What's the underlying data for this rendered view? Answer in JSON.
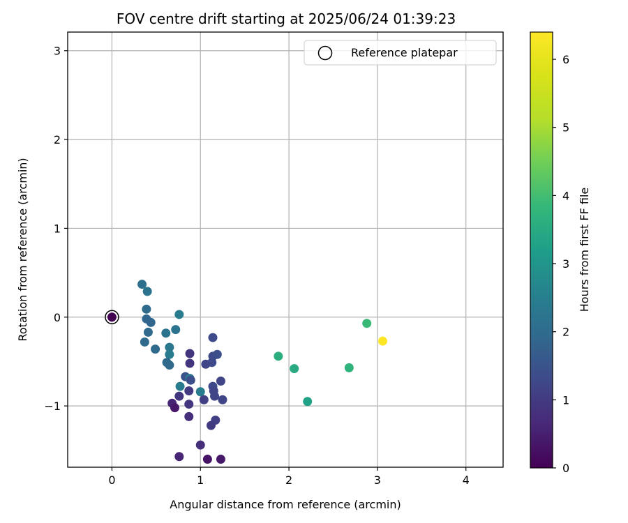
{
  "chart_data": {
    "type": "scatter",
    "title": "FOV centre drift starting at 2025/06/24 01:39:23",
    "xlabel": "Angular distance from reference (arcmin)",
    "ylabel": "Rotation from reference (arcmin)",
    "xlim": [
      -0.5,
      4.42
    ],
    "ylim": [
      -1.69,
      3.21
    ],
    "xticks": [
      0,
      1,
      2,
      3,
      4
    ],
    "yticks": [
      -1,
      0,
      1,
      2,
      3
    ],
    "grid": true,
    "legend": {
      "placement": "top-right",
      "entries": [
        "Reference platepar"
      ]
    },
    "colorbar": {
      "label": "Hours from first FF file",
      "colormap": "viridis",
      "range": [
        0,
        6.4
      ],
      "ticks": [
        0,
        1,
        2,
        3,
        4,
        5,
        6
      ]
    },
    "reference_point": {
      "x": 0,
      "y": 0
    },
    "points": [
      {
        "x": 0.0,
        "y": 0.0,
        "c": 0.0
      },
      {
        "x": 0.34,
        "y": 0.37,
        "c": 2.1
      },
      {
        "x": 0.4,
        "y": 0.29,
        "c": 2.2
      },
      {
        "x": 0.39,
        "y": 0.09,
        "c": 2.0
      },
      {
        "x": 0.39,
        "y": -0.02,
        "c": 1.9
      },
      {
        "x": 0.44,
        "y": -0.06,
        "c": 1.9
      },
      {
        "x": 0.41,
        "y": -0.17,
        "c": 2.0
      },
      {
        "x": 0.37,
        "y": -0.28,
        "c": 2.0
      },
      {
        "x": 0.49,
        "y": -0.36,
        "c": 2.0
      },
      {
        "x": 0.61,
        "y": -0.18,
        "c": 2.2
      },
      {
        "x": 0.72,
        "y": -0.14,
        "c": 2.2
      },
      {
        "x": 0.76,
        "y": 0.03,
        "c": 2.4
      },
      {
        "x": 0.65,
        "y": -0.34,
        "c": 2.3
      },
      {
        "x": 0.65,
        "y": -0.42,
        "c": 2.4
      },
      {
        "x": 0.62,
        "y": -0.51,
        "c": 2.0
      },
      {
        "x": 0.65,
        "y": -0.54,
        "c": 2.0
      },
      {
        "x": 0.88,
        "y": -0.41,
        "c": 0.9
      },
      {
        "x": 0.88,
        "y": -0.52,
        "c": 0.9
      },
      {
        "x": 0.83,
        "y": -0.67,
        "c": 1.5
      },
      {
        "x": 0.88,
        "y": -0.69,
        "c": 2.3
      },
      {
        "x": 0.89,
        "y": -0.71,
        "c": 1.4
      },
      {
        "x": 0.77,
        "y": -0.78,
        "c": 2.4
      },
      {
        "x": 0.87,
        "y": -0.83,
        "c": 1.0
      },
      {
        "x": 0.76,
        "y": -0.89,
        "c": 0.9
      },
      {
        "x": 0.68,
        "y": -0.97,
        "c": 0.6
      },
      {
        "x": 0.71,
        "y": -1.02,
        "c": 0.4
      },
      {
        "x": 0.87,
        "y": -0.98,
        "c": 0.9
      },
      {
        "x": 0.87,
        "y": -1.12,
        "c": 0.8
      },
      {
        "x": 1.14,
        "y": -0.23,
        "c": 1.3
      },
      {
        "x": 1.14,
        "y": -0.44,
        "c": 1.3
      },
      {
        "x": 1.19,
        "y": -0.42,
        "c": 1.4
      },
      {
        "x": 1.13,
        "y": -0.51,
        "c": 1.3
      },
      {
        "x": 1.06,
        "y": -0.53,
        "c": 1.2
      },
      {
        "x": 1.23,
        "y": -0.72,
        "c": 1.2
      },
      {
        "x": 1.0,
        "y": -0.84,
        "c": 2.4
      },
      {
        "x": 1.14,
        "y": -0.78,
        "c": 1.3
      },
      {
        "x": 1.15,
        "y": -0.83,
        "c": 1.2
      },
      {
        "x": 1.16,
        "y": -0.89,
        "c": 1.2
      },
      {
        "x": 1.04,
        "y": -0.93,
        "c": 1.1
      },
      {
        "x": 1.25,
        "y": -0.93,
        "c": 1.2
      },
      {
        "x": 1.17,
        "y": -1.16,
        "c": 1.1
      },
      {
        "x": 1.12,
        "y": -1.22,
        "c": 1.0
      },
      {
        "x": 1.0,
        "y": -1.44,
        "c": 0.8
      },
      {
        "x": 0.76,
        "y": -1.57,
        "c": 0.6
      },
      {
        "x": 1.08,
        "y": -1.6,
        "c": 0.3
      },
      {
        "x": 1.23,
        "y": -1.6,
        "c": 0.4
      },
      {
        "x": 1.88,
        "y": -0.44,
        "c": 3.6
      },
      {
        "x": 2.06,
        "y": -0.58,
        "c": 3.5
      },
      {
        "x": 2.21,
        "y": -0.95,
        "c": 3.3
      },
      {
        "x": 2.68,
        "y": -0.57,
        "c": 3.7
      },
      {
        "x": 2.88,
        "y": -0.07,
        "c": 3.9
      },
      {
        "x": 3.06,
        "y": -0.27,
        "c": 6.4
      }
    ]
  }
}
